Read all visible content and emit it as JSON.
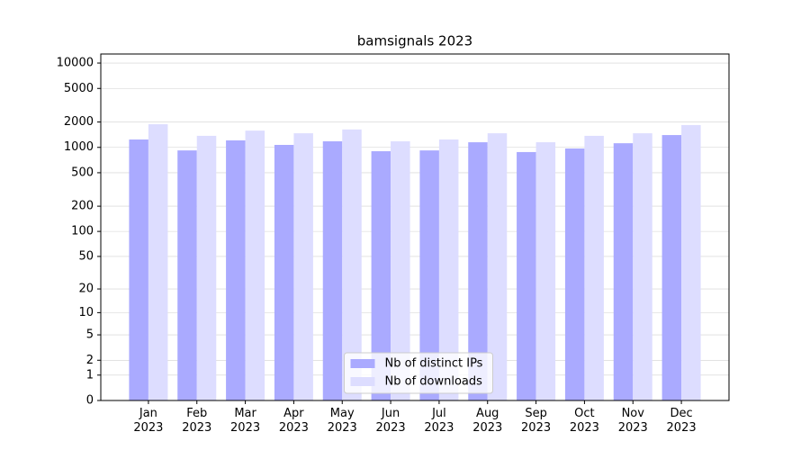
{
  "chart_data": {
    "type": "bar",
    "title": "bamsignals 2023",
    "categories": [
      "Jan\n2023",
      "Feb\n2023",
      "Mar\n2023",
      "Apr\n2023",
      "May\n2023",
      "Jun\n2023",
      "Jul\n2023",
      "Aug\n2023",
      "Sep\n2023",
      "Oct\n2023",
      "Nov\n2023",
      "Dec\n2023"
    ],
    "series": [
      {
        "name": "Nb of distinct IPs",
        "color": "#aaaaff",
        "values": [
          1240,
          920,
          1210,
          1070,
          1180,
          900,
          920,
          1150,
          880,
          970,
          1120,
          1400
        ]
      },
      {
        "name": "Nb of downloads",
        "color": "#ddddff",
        "values": [
          1880,
          1370,
          1580,
          1470,
          1630,
          1180,
          1240,
          1470,
          1150,
          1370,
          1470,
          1840
        ]
      }
    ],
    "scale": "log1p",
    "ylim": [
      0,
      12800
    ],
    "yticks": [
      0,
      1,
      2,
      5,
      10,
      20,
      50,
      100,
      200,
      500,
      1000,
      2000,
      5000,
      10000
    ],
    "grid": true,
    "legend": "lower center"
  }
}
